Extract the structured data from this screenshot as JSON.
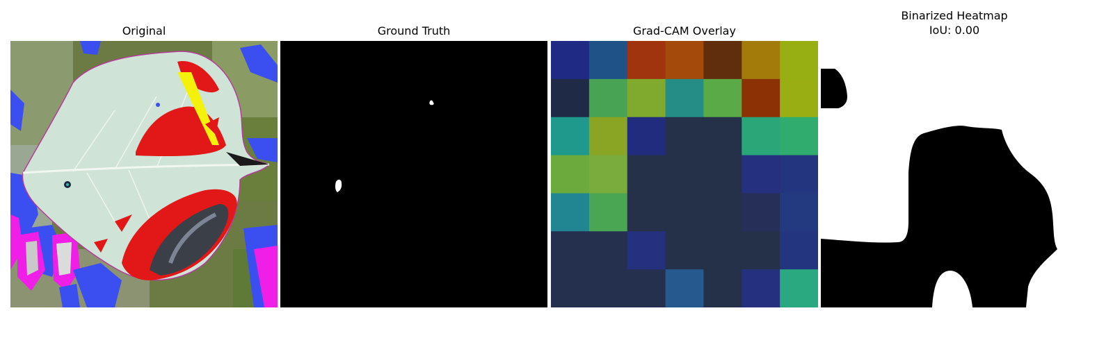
{
  "panels": [
    {
      "title": "Original"
    },
    {
      "title": "Ground Truth"
    },
    {
      "title": "Grad-CAM Overlay"
    },
    {
      "title_line1": "Binarized Heatmap",
      "title_line2": "IoU: 0.00"
    }
  ],
  "gradcam_grid_colors": [
    [
      "#1f2a85",
      "#1f5287",
      "#a0340e",
      "#a44a0a",
      "#602e0d",
      "#a27b0b",
      "#97af13"
    ],
    [
      "#1f2a47",
      "#48a354",
      "#7faa2d",
      "#268c86",
      "#5aaa48",
      "#8b3105",
      "#99ae13"
    ],
    [
      "#1f998c",
      "#8aa423",
      "#222c7f",
      "#253049",
      "#253049",
      "#2ba679",
      "#30ac6e"
    ],
    [
      "#6daa3e",
      "#7aac3d",
      "#253049",
      "#253049",
      "#253049",
      "#25307f",
      "#24357f"
    ],
    [
      "#218692",
      "#4ba653",
      "#253049",
      "#253049",
      "#253049",
      "#252f58",
      "#243a80"
    ],
    [
      "#25304f",
      "#25304f",
      "#25307f",
      "#253049",
      "#253049",
      "#253049",
      "#24357f"
    ],
    [
      "#25304f",
      "#25304f",
      "#25304f",
      "#265a8f",
      "#253049",
      "#25307f",
      "#2aa981"
    ]
  ]
}
